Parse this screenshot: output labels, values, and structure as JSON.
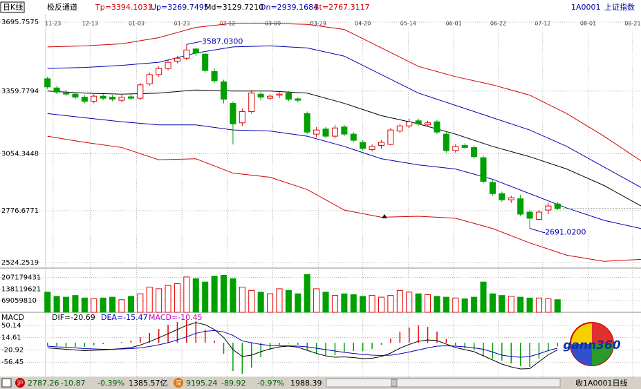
{
  "window": {
    "period": "日K线",
    "code": "1A0001",
    "name": "上证指数"
  },
  "chart_data": [
    {
      "type": "candlestick",
      "title": "极反通道",
      "xlim": [
        -0.5,
        64
      ],
      "ylim": [
        2524.2519,
        3695.7575
      ],
      "yticks": [
        2524.2519,
        2776.6771,
        3054.3448,
        3359.7794,
        3695.7575
      ],
      "xticks": [
        {
          "value": 0.6,
          "label": "11-23"
        },
        {
          "value": 4.6,
          "label": "12-13"
        },
        {
          "value": 9.6,
          "label": "01-03"
        },
        {
          "value": 14.5,
          "label": "01-23"
        },
        {
          "value": 19.4,
          "label": "02-12"
        },
        {
          "value": 24.3,
          "label": "03-09"
        },
        {
          "value": 29.2,
          "label": "03-29"
        },
        {
          "value": 34,
          "label": "04-20"
        },
        {
          "value": 38.9,
          "label": "05-14"
        },
        {
          "value": 43.8,
          "label": "06-01"
        },
        {
          "value": 48.6,
          "label": "06-22"
        },
        {
          "value": 53.4,
          "label": "07-12"
        },
        {
          "value": 58.3,
          "label": "08-01"
        },
        {
          "value": 63.1,
          "label": "08-21"
        }
      ],
      "grid": true,
      "up_color": "#e00000",
      "down_color": "#00a000",
      "open": [
        3420,
        3375,
        3350,
        3345,
        3330,
        3310,
        3335,
        3330,
        3315,
        3332,
        3325,
        3395,
        3440,
        3470,
        3505,
        3520,
        3565,
        3540,
        3455,
        3405,
        3300,
        3205,
        3260,
        3345,
        3325,
        3340,
        3350,
        3322,
        3250,
        3150,
        3175,
        3140,
        3185,
        3150,
        3110,
        3075,
        3095,
        3100,
        3165,
        3190,
        3215,
        3195,
        3210,
        3150,
        3070,
        3095,
        3085,
        3035,
        2915,
        2860,
        2830,
        2835,
        2770,
        2735,
        2780,
        2810
      ],
      "high": [
        3430,
        3385,
        3365,
        3355,
        3340,
        3345,
        3345,
        3340,
        3340,
        3345,
        3400,
        3450,
        3480,
        3510,
        3530,
        3587.03,
        3570,
        3545,
        3470,
        3415,
        3310,
        3275,
        3365,
        3355,
        3345,
        3355,
        3360,
        3330,
        3260,
        3185,
        3185,
        3195,
        3195,
        3160,
        3120,
        3100,
        3120,
        3180,
        3200,
        3225,
        3225,
        3215,
        3220,
        3165,
        3100,
        3105,
        3095,
        3045,
        2925,
        2870,
        2850,
        2855,
        2780,
        2780,
        2815,
        2820
      ],
      "low": [
        3370,
        3345,
        3335,
        3320,
        3300,
        3300,
        3315,
        3310,
        3305,
        3315,
        3315,
        3385,
        3430,
        3460,
        3495,
        3510,
        3530,
        3450,
        3400,
        3300,
        3100,
        3190,
        3250,
        3315,
        3315,
        3325,
        3310,
        3305,
        3150,
        3135,
        3130,
        3130,
        3140,
        3110,
        3070,
        3065,
        3080,
        3095,
        3155,
        3180,
        3190,
        3190,
        3150,
        3060,
        3060,
        3080,
        3030,
        2910,
        2850,
        2820,
        2815,
        2750,
        2691.02,
        2730,
        2760,
        2780
      ],
      "close": [
        3380,
        3355,
        3345,
        3330,
        3310,
        3335,
        3325,
        3320,
        3330,
        3325,
        3390,
        3440,
        3470,
        3500,
        3520,
        3560,
        3545,
        3460,
        3410,
        3320,
        3200,
        3260,
        3350,
        3330,
        3335,
        3345,
        3320,
        3315,
        3160,
        3170,
        3140,
        3180,
        3150,
        3120,
        3080,
        3090,
        3110,
        3170,
        3190,
        3210,
        3200,
        3205,
        3160,
        3070,
        3090,
        3085,
        3040,
        2920,
        2860,
        2830,
        2840,
        2760,
        2740,
        2770,
        2800,
        2787.26
      ],
      "lines": [
        {
          "label": "Tp=3394.1031",
          "color": "#d00000",
          "x": [
            0,
            4,
            8,
            12,
            16,
            20,
            24,
            28,
            32,
            36,
            40,
            44,
            48,
            52,
            56,
            60,
            64
          ],
          "values": [
            3575,
            3580,
            3590,
            3620,
            3670,
            3690,
            3690,
            3685,
            3660,
            3570,
            3480,
            3430,
            3390,
            3340,
            3250,
            3140,
            3020
          ]
        },
        {
          "label": "Up=3269.7495",
          "color": "#0000b0",
          "x": [
            0,
            4,
            8,
            12,
            16,
            20,
            24,
            28,
            32,
            36,
            40,
            44,
            48,
            52,
            56,
            60,
            64
          ],
          "values": [
            3470,
            3475,
            3485,
            3500,
            3545,
            3575,
            3580,
            3570,
            3530,
            3440,
            3350,
            3290,
            3230,
            3170,
            3090,
            2990,
            2890
          ]
        },
        {
          "label": "Md=3129.7210",
          "color": "#000000",
          "x": [
            0,
            4,
            8,
            12,
            16,
            20,
            24,
            28,
            32,
            36,
            40,
            44,
            48,
            52,
            56,
            60,
            64
          ],
          "values": [
            3360,
            3350,
            3345,
            3350,
            3365,
            3360,
            3360,
            3350,
            3300,
            3240,
            3200,
            3150,
            3090,
            3040,
            2980,
            2900,
            2800
          ]
        },
        {
          "label": "Dn=2939.1684",
          "color": "#0000b0",
          "x": [
            0,
            4,
            8,
            12,
            16,
            20,
            24,
            28,
            32,
            36,
            40,
            44,
            48,
            52,
            56,
            60,
            64
          ],
          "values": [
            3250,
            3230,
            3210,
            3195,
            3195,
            3170,
            3165,
            3140,
            3090,
            3030,
            3000,
            2980,
            2930,
            2860,
            2790,
            2730,
            2690
          ]
        },
        {
          "label": "Bt=2767.3117",
          "color": "#d00000",
          "x": [
            0,
            4,
            8,
            12,
            16,
            20,
            24,
            28,
            32,
            36,
            40,
            44,
            48,
            52,
            56,
            60,
            64
          ],
          "values": [
            3140,
            3110,
            3085,
            3025,
            3030,
            2960,
            2940,
            2880,
            2780,
            2745,
            2750,
            2740,
            2690,
            2620,
            2560,
            2530,
            2540
          ]
        }
      ],
      "annotations": [
        "3587.0300",
        "2691.0200"
      ]
    },
    {
      "type": "bar",
      "ylim": [
        0,
        230000000
      ],
      "yticks": [
        69059810,
        138119621,
        207179431
      ],
      "values": [
        120000000,
        95000000,
        90000000,
        100000000,
        85000000,
        80000000,
        85000000,
        90000000,
        75000000,
        95000000,
        110000000,
        150000000,
        140000000,
        160000000,
        170000000,
        210000000,
        200000000,
        180000000,
        215000000,
        220000000,
        200000000,
        150000000,
        130000000,
        120000000,
        110000000,
        140000000,
        130000000,
        110000000,
        225000000,
        140000000,
        120000000,
        100000000,
        110000000,
        105000000,
        95000000,
        100000000,
        90000000,
        100000000,
        130000000,
        120000000,
        110000000,
        105000000,
        95000000,
        90000000,
        85000000,
        80000000,
        90000000,
        180000000,
        110000000,
        100000000,
        95000000,
        90000000,
        85000000,
        85000000,
        80000000,
        75000000
      ]
    },
    {
      "type": "macd",
      "title": "MACD",
      "ylim": [
        -97.9,
        71.8
      ],
      "yticks": [
        -56.45,
        -20.92,
        14.61,
        50.14
      ],
      "series": [
        {
          "label": "DIF=-20.69",
          "color": "#000000",
          "values": [
            -15,
            -17,
            -19,
            -21,
            -23,
            -22,
            -21,
            -19,
            -17,
            -14,
            -7,
            3,
            14,
            26,
            38,
            50,
            58,
            52,
            38,
            15,
            -20,
            -40,
            -36,
            -26,
            -18,
            -12,
            -10,
            -13,
            -22,
            -31,
            -38,
            -42,
            -41,
            -43,
            -46,
            -45,
            -40,
            -30,
            -16,
            -5,
            4,
            8,
            6,
            -4,
            -14,
            -20,
            -26,
            -38,
            -50,
            -62,
            -70,
            -76,
            -75,
            -55,
            -35,
            -20.69
          ]
        },
        {
          "label": "DEA=-15.47",
          "color": "#0000c0",
          "values": [
            -10,
            -12,
            -13,
            -15,
            -17,
            -18,
            -19,
            -19,
            -18,
            -17,
            -15,
            -11,
            -6,
            0,
            8,
            17,
            27,
            33,
            35,
            31,
            21,
            5,
            0,
            -5,
            -8,
            -9,
            -9,
            -10,
            -12,
            -16,
            -20,
            -24,
            -28,
            -31,
            -34,
            -36,
            -37,
            -36,
            -32,
            -27,
            -21,
            -15,
            -10,
            -9,
            -10,
            -12,
            -15,
            -19,
            -27,
            -36,
            -40,
            -42,
            -40,
            -32,
            -23,
            -15.47
          ]
        }
      ],
      "histogram": {
        "label": "MACD=-10.45",
        "color": "#c000c0",
        "up_color": "#e00000",
        "down_color": "#00a000",
        "values": [
          -10,
          -10,
          -12,
          -12,
          -12,
          -8,
          -4,
          0,
          2,
          6,
          16,
          28,
          40,
          52,
          60,
          66,
          62,
          38,
          6,
          -32,
          -82,
          -90,
          -72,
          -42,
          -20,
          -6,
          -2,
          -6,
          -20,
          -30,
          -36,
          -36,
          -26,
          -24,
          -24,
          -18,
          -6,
          12,
          32,
          44,
          50,
          46,
          32,
          10,
          -8,
          -16,
          -22,
          -38,
          -46,
          -52,
          -60,
          -68,
          -70,
          -46,
          -24,
          -10.45
        ]
      }
    }
  ],
  "status_bar": {
    "sh_icon": "沪",
    "sh_index": "2787.26",
    "sh_change": "-10.87",
    "sh_pct": "-0.39%",
    "sh_amount": "1385.57亿",
    "sz_icon": "深",
    "sz_index": "9195.24",
    "sz_change": "-89.92",
    "sz_pct": "-0.97%",
    "sz_amount": "1988.39",
    "right": "收1A0001日线"
  },
  "logo": "gann360"
}
